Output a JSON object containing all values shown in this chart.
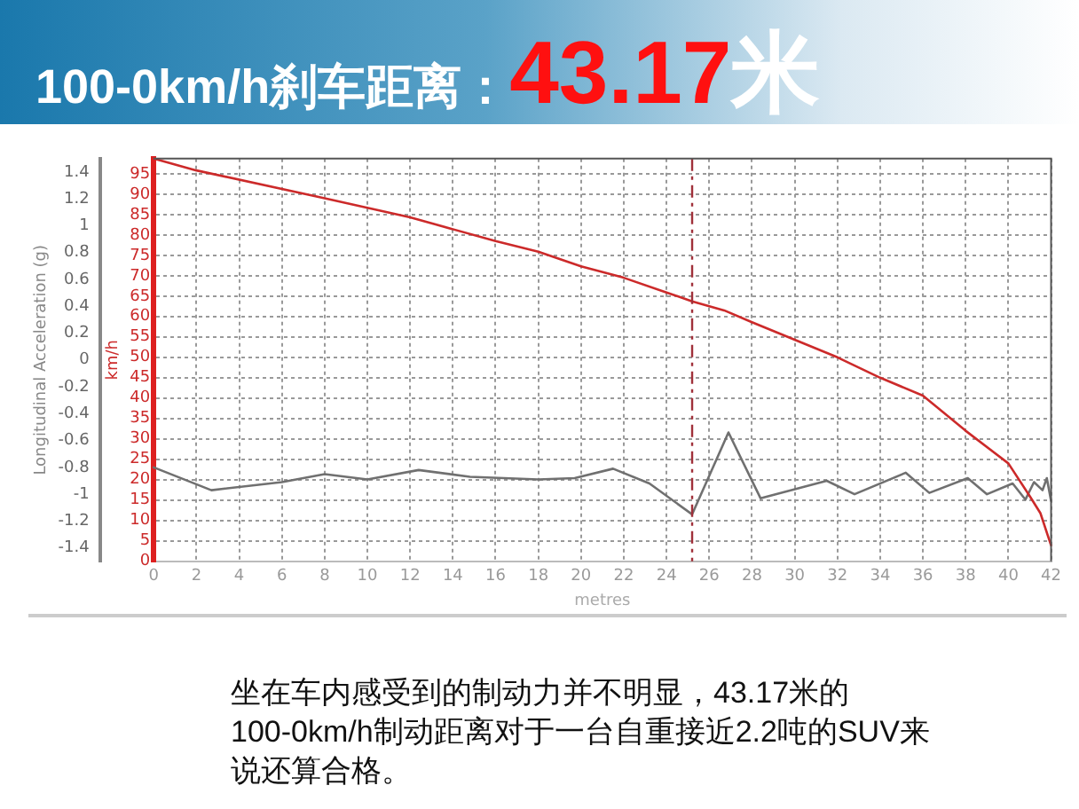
{
  "chart_data": {
    "type": "line",
    "title": "100-0km/h刹车距离：43.17米",
    "xlabel": "metres",
    "ylabel": "km/h",
    "y2label": "Longitudinal Acceleration (g)",
    "series": [
      {
        "color": "#cc2a2a",
        "axis": "y",
        "x": [
          0,
          2,
          8,
          12,
          16,
          18,
          20,
          22,
          24,
          25.2,
          26.7,
          28,
          30,
          32,
          34,
          36,
          38,
          40,
          41,
          41.5,
          42
        ],
        "values": [
          98.7,
          95.8,
          89,
          84.3,
          78.5,
          75.9,
          72.3,
          69.5,
          65.9,
          63.7,
          61.5,
          58.6,
          54.3,
          50,
          45,
          40.6,
          32,
          24,
          16,
          11.8,
          3.9
        ]
      },
      {
        "color": "#707070",
        "axis": "y2",
        "x": [
          0,
          2.7,
          6,
          8,
          10,
          12.4,
          14.8,
          18,
          19.7,
          21.5,
          23.2,
          25.2,
          26.9,
          28.4,
          31.5,
          32.8,
          35.2,
          36.3,
          38.1,
          39,
          40.2,
          40.8,
          41.2,
          41.6,
          41.8,
          42
        ],
        "values": [
          -0.8,
          -0.97,
          -0.91,
          -0.85,
          -0.89,
          -0.82,
          -0.87,
          -0.89,
          -0.88,
          -0.81,
          -0.92,
          -1.15,
          -0.54,
          -1.03,
          -0.9,
          -1,
          -0.84,
          -0.99,
          -0.88,
          -1,
          -0.92,
          -1.04,
          -0.91,
          -0.97,
          -0.88,
          -1.05
        ]
      }
    ],
    "xlim": [
      0,
      42
    ],
    "xticks": [
      0,
      2,
      4,
      6,
      8,
      10,
      12,
      14,
      16,
      18,
      20,
      22,
      24,
      26,
      28,
      30,
      32,
      34,
      36,
      38,
      40,
      42
    ],
    "ylim": [
      0,
      98.7
    ],
    "yticks": [
      0,
      5,
      10,
      15,
      20,
      25,
      30,
      35,
      40,
      45,
      50,
      55,
      60,
      65,
      70,
      75,
      80,
      85,
      90,
      95
    ],
    "y2lim": [
      -1.5,
      1.5
    ],
    "y2ticks": [
      -1.4,
      -1.2,
      -1,
      -0.8,
      -0.6,
      -0.4,
      -0.2,
      0,
      0.2,
      0.4,
      0.6,
      0.8,
      1,
      1.2,
      1.4
    ],
    "ref_lines": [
      {
        "axis": "x",
        "value": 25.2,
        "color": "#a0303a",
        "line_style": "dashed"
      }
    ],
    "grid": true,
    "legend": false,
    "marker": "none",
    "line_style": "solid",
    "annotations": [
      "坐在车内感受到的制动力并不明显，43.17米的100-0km/h制动距离对于一台自重接近2.2吨的SUV来说还算合格。"
    ]
  }
}
